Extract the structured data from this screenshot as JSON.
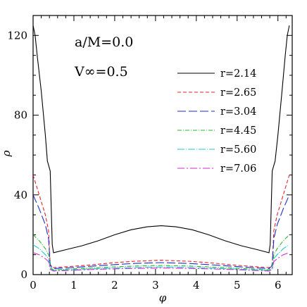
{
  "chart_data": {
    "type": "line",
    "title": "",
    "xlabel": "φ",
    "ylabel": "ρ",
    "xlim": [
      0,
      6.35
    ],
    "ylim": [
      0,
      130
    ],
    "x_ticks": [
      0,
      1,
      2,
      3,
      4,
      5,
      6
    ],
    "y_ticks": [
      0,
      40,
      80,
      120
    ],
    "grid": false,
    "legend_position": "top-right",
    "annotations": [
      {
        "text": "a/M=0.0",
        "position": "top-left"
      },
      {
        "text": "V∞=0.5",
        "position": "top-left"
      }
    ],
    "series": [
      {
        "name": "r=2.14",
        "color": "#000000",
        "dash": "solid",
        "x": [
          0.0,
          0.05,
          0.1,
          0.2,
          0.3,
          0.35,
          0.42,
          0.47,
          0.5,
          0.8,
          1.2,
          1.6,
          2.0,
          2.4,
          2.8,
          3.14,
          3.5,
          3.9,
          4.3,
          4.7,
          5.1,
          5.5,
          5.78,
          5.81,
          5.86,
          5.93,
          6.0,
          6.1,
          6.18,
          6.23,
          6.28
        ],
        "y": [
          125,
          120,
          110,
          92,
          70,
          57,
          52,
          15,
          11,
          12.5,
          14.5,
          17.0,
          20.0,
          22.5,
          24.0,
          24.5,
          24.0,
          22.5,
          20.0,
          17.0,
          14.5,
          12.5,
          11,
          15,
          52,
          57,
          70,
          92,
          110,
          120,
          125
        ]
      },
      {
        "name": "r=2.65",
        "color": "#e8202a",
        "dash": "5,3",
        "x": [
          0.0,
          0.15,
          0.3,
          0.38,
          0.42,
          0.5,
          1.0,
          1.5,
          2.0,
          2.5,
          3.14,
          3.8,
          4.3,
          4.8,
          5.3,
          5.78,
          5.86,
          5.9,
          5.98,
          6.13,
          6.28
        ],
        "y": [
          50,
          40,
          30,
          22,
          5,
          3.5,
          4.2,
          5.0,
          6.0,
          6.7,
          7.2,
          6.7,
          6.0,
          5.0,
          4.2,
          3.5,
          5,
          22,
          30,
          40,
          50
        ]
      },
      {
        "name": "r=3.04",
        "color": "#1a2ec8",
        "dash": "12,4",
        "x": [
          0.0,
          0.15,
          0.3,
          0.38,
          0.42,
          0.5,
          1.0,
          1.5,
          2.0,
          2.5,
          3.14,
          3.8,
          4.3,
          4.8,
          5.3,
          5.78,
          5.86,
          5.9,
          5.98,
          6.13,
          6.28
        ],
        "y": [
          40,
          33,
          25,
          18,
          4.5,
          3.0,
          3.6,
          4.3,
          5.0,
          5.6,
          6.0,
          5.6,
          5.0,
          4.3,
          3.6,
          3.0,
          4.5,
          18,
          25,
          33,
          40
        ]
      },
      {
        "name": "r=4.45",
        "color": "#2db52d",
        "dash": "6,2,1,2",
        "x": [
          0.0,
          0.15,
          0.3,
          0.38,
          0.42,
          0.5,
          1.0,
          1.5,
          2.0,
          2.5,
          3.14,
          3.8,
          4.3,
          4.8,
          5.3,
          5.78,
          5.86,
          5.9,
          5.98,
          6.13,
          6.28
        ],
        "y": [
          20,
          17,
          13,
          10,
          3.5,
          2.4,
          2.9,
          3.4,
          3.9,
          4.3,
          4.6,
          4.3,
          3.9,
          3.4,
          2.9,
          2.4,
          3.5,
          10,
          13,
          17,
          20
        ]
      },
      {
        "name": "r=5.60",
        "color": "#22c8d6",
        "dash": "10,2,1,2",
        "x": [
          0.0,
          0.15,
          0.3,
          0.38,
          0.42,
          0.5,
          1.0,
          1.5,
          2.0,
          2.5,
          3.14,
          3.8,
          4.3,
          4.8,
          5.3,
          5.78,
          5.86,
          5.9,
          5.98,
          6.13,
          6.28
        ],
        "y": [
          15,
          13,
          10,
          8,
          3.0,
          2.1,
          2.5,
          2.9,
          3.3,
          3.6,
          3.8,
          3.6,
          3.3,
          2.9,
          2.5,
          2.1,
          3.0,
          8,
          10,
          13,
          15
        ]
      },
      {
        "name": "r=7.06",
        "color": "#d42ad0",
        "dash": "10,3,2,3",
        "x": [
          0.0,
          0.15,
          0.3,
          0.38,
          0.42,
          0.5,
          1.0,
          1.5,
          2.0,
          2.5,
          3.14,
          3.8,
          4.3,
          4.8,
          5.3,
          5.78,
          5.86,
          5.9,
          5.98,
          6.13,
          6.28
        ],
        "y": [
          11,
          10,
          8,
          6.5,
          2.6,
          1.8,
          2.2,
          2.6,
          2.9,
          3.1,
          3.3,
          3.1,
          2.9,
          2.6,
          2.2,
          1.8,
          2.6,
          6.5,
          8,
          10,
          11
        ]
      }
    ]
  }
}
